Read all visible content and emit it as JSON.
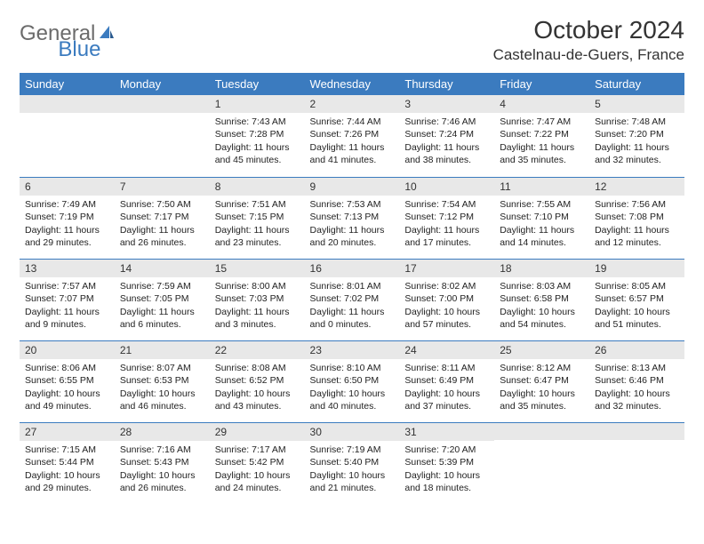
{
  "logo": {
    "gray": "General",
    "blue": "Blue"
  },
  "title": "October 2024",
  "location": "Castelnau-de-Guers, France",
  "dayHeaders": [
    "Sunday",
    "Monday",
    "Tuesday",
    "Wednesday",
    "Thursday",
    "Friday",
    "Saturday"
  ],
  "colors": {
    "headerBg": "#3b7bbf",
    "headerText": "#ffffff",
    "dayNumBg": "#e8e8e8",
    "rowBorder": "#3b7bbf",
    "logoGray": "#6b6b6b",
    "logoBlue": "#3b7bbf"
  },
  "weeks": [
    [
      null,
      null,
      {
        "n": "1",
        "sr": "Sunrise: 7:43 AM",
        "ss": "Sunset: 7:28 PM",
        "dl": "Daylight: 11 hours and 45 minutes."
      },
      {
        "n": "2",
        "sr": "Sunrise: 7:44 AM",
        "ss": "Sunset: 7:26 PM",
        "dl": "Daylight: 11 hours and 41 minutes."
      },
      {
        "n": "3",
        "sr": "Sunrise: 7:46 AM",
        "ss": "Sunset: 7:24 PM",
        "dl": "Daylight: 11 hours and 38 minutes."
      },
      {
        "n": "4",
        "sr": "Sunrise: 7:47 AM",
        "ss": "Sunset: 7:22 PM",
        "dl": "Daylight: 11 hours and 35 minutes."
      },
      {
        "n": "5",
        "sr": "Sunrise: 7:48 AM",
        "ss": "Sunset: 7:20 PM",
        "dl": "Daylight: 11 hours and 32 minutes."
      }
    ],
    [
      {
        "n": "6",
        "sr": "Sunrise: 7:49 AM",
        "ss": "Sunset: 7:19 PM",
        "dl": "Daylight: 11 hours and 29 minutes."
      },
      {
        "n": "7",
        "sr": "Sunrise: 7:50 AM",
        "ss": "Sunset: 7:17 PM",
        "dl": "Daylight: 11 hours and 26 minutes."
      },
      {
        "n": "8",
        "sr": "Sunrise: 7:51 AM",
        "ss": "Sunset: 7:15 PM",
        "dl": "Daylight: 11 hours and 23 minutes."
      },
      {
        "n": "9",
        "sr": "Sunrise: 7:53 AM",
        "ss": "Sunset: 7:13 PM",
        "dl": "Daylight: 11 hours and 20 minutes."
      },
      {
        "n": "10",
        "sr": "Sunrise: 7:54 AM",
        "ss": "Sunset: 7:12 PM",
        "dl": "Daylight: 11 hours and 17 minutes."
      },
      {
        "n": "11",
        "sr": "Sunrise: 7:55 AM",
        "ss": "Sunset: 7:10 PM",
        "dl": "Daylight: 11 hours and 14 minutes."
      },
      {
        "n": "12",
        "sr": "Sunrise: 7:56 AM",
        "ss": "Sunset: 7:08 PM",
        "dl": "Daylight: 11 hours and 12 minutes."
      }
    ],
    [
      {
        "n": "13",
        "sr": "Sunrise: 7:57 AM",
        "ss": "Sunset: 7:07 PM",
        "dl": "Daylight: 11 hours and 9 minutes."
      },
      {
        "n": "14",
        "sr": "Sunrise: 7:59 AM",
        "ss": "Sunset: 7:05 PM",
        "dl": "Daylight: 11 hours and 6 minutes."
      },
      {
        "n": "15",
        "sr": "Sunrise: 8:00 AM",
        "ss": "Sunset: 7:03 PM",
        "dl": "Daylight: 11 hours and 3 minutes."
      },
      {
        "n": "16",
        "sr": "Sunrise: 8:01 AM",
        "ss": "Sunset: 7:02 PM",
        "dl": "Daylight: 11 hours and 0 minutes."
      },
      {
        "n": "17",
        "sr": "Sunrise: 8:02 AM",
        "ss": "Sunset: 7:00 PM",
        "dl": "Daylight: 10 hours and 57 minutes."
      },
      {
        "n": "18",
        "sr": "Sunrise: 8:03 AM",
        "ss": "Sunset: 6:58 PM",
        "dl": "Daylight: 10 hours and 54 minutes."
      },
      {
        "n": "19",
        "sr": "Sunrise: 8:05 AM",
        "ss": "Sunset: 6:57 PM",
        "dl": "Daylight: 10 hours and 51 minutes."
      }
    ],
    [
      {
        "n": "20",
        "sr": "Sunrise: 8:06 AM",
        "ss": "Sunset: 6:55 PM",
        "dl": "Daylight: 10 hours and 49 minutes."
      },
      {
        "n": "21",
        "sr": "Sunrise: 8:07 AM",
        "ss": "Sunset: 6:53 PM",
        "dl": "Daylight: 10 hours and 46 minutes."
      },
      {
        "n": "22",
        "sr": "Sunrise: 8:08 AM",
        "ss": "Sunset: 6:52 PM",
        "dl": "Daylight: 10 hours and 43 minutes."
      },
      {
        "n": "23",
        "sr": "Sunrise: 8:10 AM",
        "ss": "Sunset: 6:50 PM",
        "dl": "Daylight: 10 hours and 40 minutes."
      },
      {
        "n": "24",
        "sr": "Sunrise: 8:11 AM",
        "ss": "Sunset: 6:49 PM",
        "dl": "Daylight: 10 hours and 37 minutes."
      },
      {
        "n": "25",
        "sr": "Sunrise: 8:12 AM",
        "ss": "Sunset: 6:47 PM",
        "dl": "Daylight: 10 hours and 35 minutes."
      },
      {
        "n": "26",
        "sr": "Sunrise: 8:13 AM",
        "ss": "Sunset: 6:46 PM",
        "dl": "Daylight: 10 hours and 32 minutes."
      }
    ],
    [
      {
        "n": "27",
        "sr": "Sunrise: 7:15 AM",
        "ss": "Sunset: 5:44 PM",
        "dl": "Daylight: 10 hours and 29 minutes."
      },
      {
        "n": "28",
        "sr": "Sunrise: 7:16 AM",
        "ss": "Sunset: 5:43 PM",
        "dl": "Daylight: 10 hours and 26 minutes."
      },
      {
        "n": "29",
        "sr": "Sunrise: 7:17 AM",
        "ss": "Sunset: 5:42 PM",
        "dl": "Daylight: 10 hours and 24 minutes."
      },
      {
        "n": "30",
        "sr": "Sunrise: 7:19 AM",
        "ss": "Sunset: 5:40 PM",
        "dl": "Daylight: 10 hours and 21 minutes."
      },
      {
        "n": "31",
        "sr": "Sunrise: 7:20 AM",
        "ss": "Sunset: 5:39 PM",
        "dl": "Daylight: 10 hours and 18 minutes."
      },
      null,
      null
    ]
  ]
}
